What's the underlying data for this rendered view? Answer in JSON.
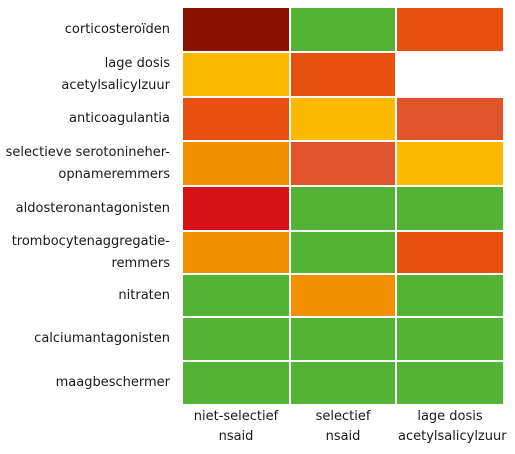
{
  "chart_data": {
    "type": "heatmap",
    "rows": [
      [
        "corticosteroïden"
      ],
      [
        "lage dosis",
        "acetylsalicylzuur"
      ],
      [
        "anticoagulantia"
      ],
      [
        "selectieve serotonineher-",
        "opnameremmers"
      ],
      [
        "aldosteronantagonisten"
      ],
      [
        "trombocytenaggregatie-",
        "remmers"
      ],
      [
        "nitraten"
      ],
      [
        "calciumantagonisten"
      ],
      [
        "maagbeschermer"
      ]
    ],
    "columns": [
      [
        "niet-selectief",
        "nsaid"
      ],
      [
        "selectief",
        "nsaid"
      ],
      [
        "lage dosis",
        "acetylsalicylzuur"
      ]
    ],
    "cells": [
      [
        "#8b1200",
        "#52b335",
        "#e8500f"
      ],
      [
        "#fbb900",
        "#e8500f",
        null
      ],
      [
        "#e8500f",
        "#fbb900",
        "#e0532b"
      ],
      [
        "#f29100",
        "#e0532b",
        "#fbb900"
      ],
      [
        "#d51317",
        "#52b335",
        "#52b335"
      ],
      [
        "#f29100",
        "#52b335",
        "#e8500f"
      ],
      [
        "#52b335",
        "#f29100",
        "#52b335"
      ],
      [
        "#52b335",
        "#52b335",
        "#52b335"
      ],
      [
        "#52b335",
        "#52b335",
        "#52b335"
      ]
    ]
  }
}
